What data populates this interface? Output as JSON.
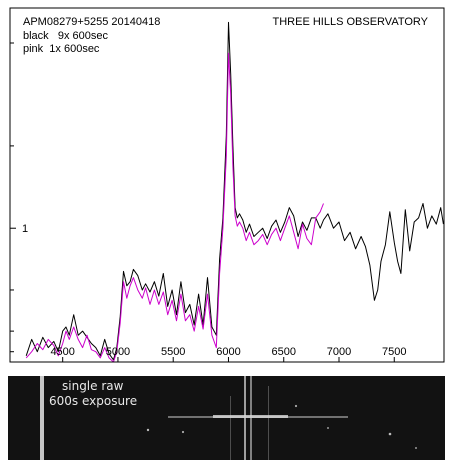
{
  "chart_data": {
    "type": "line",
    "title": "APM08279+5255  20140418",
    "observatory": "THREE HILLS OBSERVATORY",
    "xlabel": "",
    "ylabel": "",
    "xlim": [
      4150,
      7950
    ],
    "ylim": [
      0.35,
      2.07
    ],
    "x_ticks": [
      4500,
      5000,
      5500,
      6000,
      6500,
      7000,
      7500
    ],
    "y_ticks": [
      1
    ],
    "y_minor_ticks": [
      0.4,
      0.5,
      0.7,
      1.4,
      1.9
    ],
    "legend": [
      {
        "label": "black   9x 600sec",
        "color": "#000000"
      },
      {
        "label": "pink  1x 600sec",
        "color": "#cc00cc"
      }
    ],
    "series": [
      {
        "name": "black   9x 600sec",
        "color": "#000000",
        "x": [
          4170,
          4220,
          4270,
          4320,
          4370,
          4420,
          4460,
          4500,
          4530,
          4560,
          4600,
          4640,
          4680,
          4720,
          4760,
          4800,
          4840,
          4880,
          4920,
          4960,
          4990,
          5020,
          5050,
          5080,
          5110,
          5140,
          5180,
          5220,
          5250,
          5290,
          5330,
          5370,
          5410,
          5450,
          5490,
          5530,
          5570,
          5610,
          5650,
          5690,
          5730,
          5770,
          5810,
          5850,
          5890,
          5920,
          5950,
          5980,
          6000,
          6020,
          6040,
          6060,
          6080,
          6100,
          6130,
          6160,
          6190,
          6230,
          6270,
          6310,
          6350,
          6390,
          6430,
          6470,
          6510,
          6550,
          6590,
          6630,
          6670,
          6710,
          6750,
          6790,
          6830,
          6860,
          6900,
          6950,
          7000,
          7050,
          7100,
          7150,
          7200,
          7240,
          7280,
          7320,
          7350,
          7380,
          7420,
          7460,
          7500,
          7530,
          7560,
          7600,
          7640,
          7680,
          7720,
          7760,
          7800,
          7840,
          7880,
          7920,
          7945
        ],
        "y": [
          0.38,
          0.46,
          0.4,
          0.47,
          0.42,
          0.45,
          0.4,
          0.5,
          0.52,
          0.48,
          0.58,
          0.48,
          0.5,
          0.47,
          0.44,
          0.42,
          0.38,
          0.46,
          0.39,
          0.36,
          0.42,
          0.57,
          0.79,
          0.72,
          0.74,
          0.8,
          0.77,
          0.7,
          0.73,
          0.69,
          0.74,
          0.67,
          0.78,
          0.62,
          0.7,
          0.58,
          0.74,
          0.59,
          0.63,
          0.53,
          0.68,
          0.53,
          0.76,
          0.52,
          0.48,
          0.85,
          1.05,
          1.45,
          2.0,
          1.75,
          1.4,
          1.1,
          1.05,
          1.07,
          1.04,
          0.98,
          1.02,
          0.96,
          0.98,
          1.0,
          0.95,
          1.01,
          1.04,
          0.98,
          1.03,
          1.1,
          1.06,
          0.96,
          1.03,
          0.99,
          1.05,
          1.05,
          1.0,
          1.04,
          1.07,
          1.0,
          1.03,
          0.94,
          0.98,
          0.9,
          0.96,
          0.91,
          0.82,
          0.65,
          0.7,
          0.84,
          0.92,
          1.08,
          0.93,
          0.84,
          0.78,
          1.09,
          0.89,
          1.03,
          1.05,
          1.12,
          1.0,
          1.06,
          1.02,
          1.1,
          1.02
        ]
      },
      {
        "name": "pink  1x 600sec",
        "color": "#cc00cc",
        "x": [
          4170,
          4220,
          4270,
          4320,
          4370,
          4420,
          4460,
          4500,
          4530,
          4560,
          4600,
          4640,
          4680,
          4720,
          4760,
          4800,
          4840,
          4880,
          4920,
          4960,
          4990,
          5020,
          5050,
          5080,
          5110,
          5140,
          5180,
          5220,
          5250,
          5290,
          5330,
          5370,
          5410,
          5450,
          5490,
          5530,
          5570,
          5610,
          5650,
          5690,
          5730,
          5770,
          5810,
          5850,
          5890,
          5920,
          5950,
          5980,
          6000,
          6020,
          6040,
          6060,
          6080,
          6100,
          6130,
          6160,
          6190,
          6230,
          6270,
          6310,
          6350,
          6390,
          6430,
          6470,
          6510,
          6550,
          6590,
          6630,
          6670,
          6710,
          6750,
          6790,
          6830,
          6860
        ],
        "y": [
          0.37,
          0.4,
          0.44,
          0.41,
          0.46,
          0.43,
          0.38,
          0.44,
          0.5,
          0.46,
          0.52,
          0.46,
          0.42,
          0.48,
          0.41,
          0.4,
          0.37,
          0.42,
          0.37,
          0.35,
          0.4,
          0.54,
          0.74,
          0.66,
          0.72,
          0.76,
          0.7,
          0.66,
          0.71,
          0.63,
          0.7,
          0.63,
          0.69,
          0.58,
          0.65,
          0.55,
          0.68,
          0.55,
          0.58,
          0.5,
          0.62,
          0.51,
          0.68,
          0.48,
          0.42,
          0.78,
          1.0,
          1.35,
          1.85,
          1.65,
          1.3,
          1.06,
          1.01,
          1.03,
          1.0,
          0.94,
          0.98,
          0.92,
          0.94,
          0.97,
          0.92,
          0.97,
          1.0,
          0.94,
          1.0,
          1.06,
          0.98,
          0.9,
          1.02,
          0.95,
          0.92,
          1.05,
          1.08,
          1.12
        ]
      }
    ]
  },
  "raw_frame": {
    "caption_line1": "single raw",
    "caption_line2": "600s exposure"
  }
}
